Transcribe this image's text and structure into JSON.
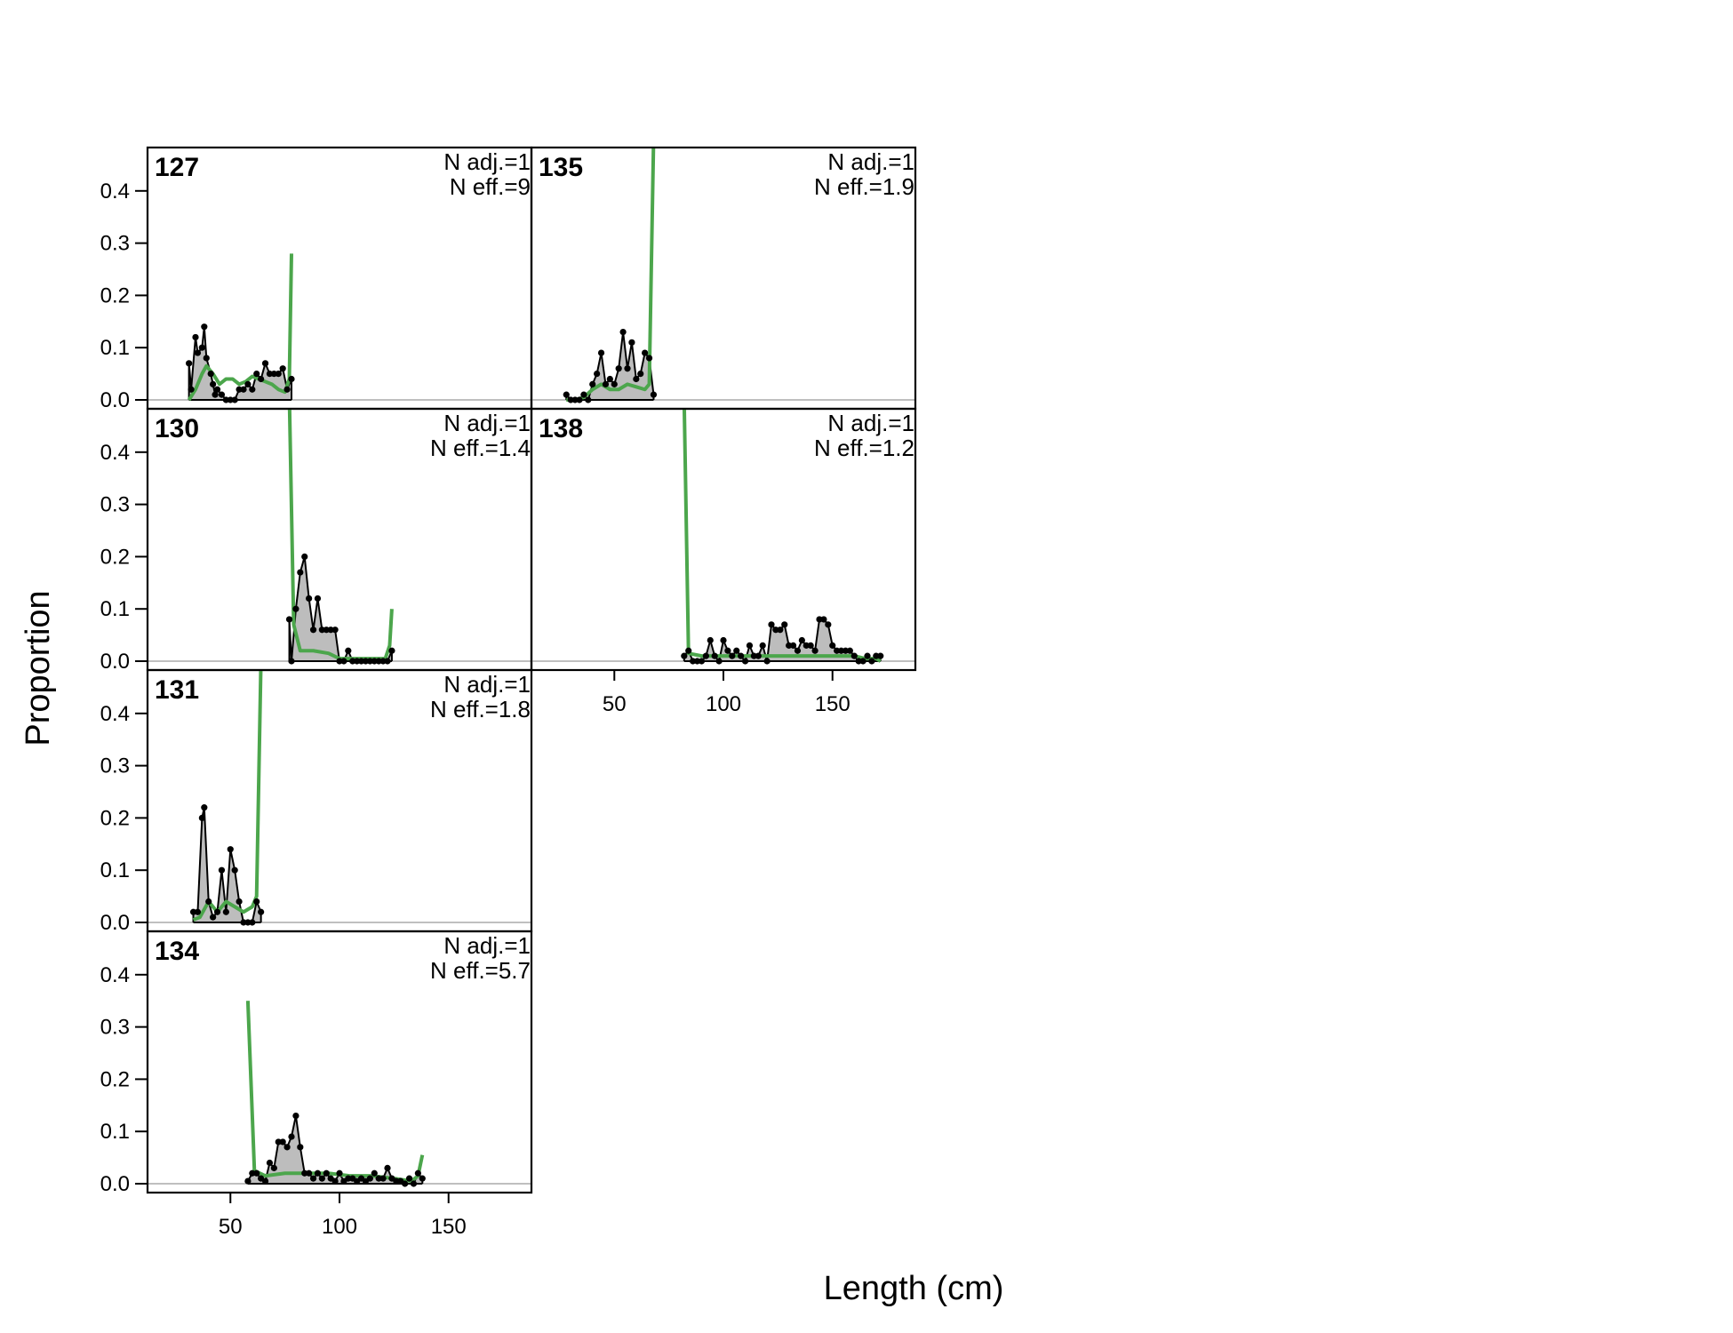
{
  "chart_data": {
    "type": "area",
    "xlabel": "Length (cm)",
    "ylabel": "Proportion",
    "xlim": [
      12,
      188
    ],
    "ylim": [
      -0.017,
      0.483
    ],
    "xticks": [
      50,
      100,
      150
    ],
    "xtick_labels": [
      "50",
      "100",
      "150"
    ],
    "yticks": [
      0.0,
      0.1,
      0.2,
      0.3,
      0.4
    ],
    "ytick_labels": [
      "0.0",
      "0.1",
      "0.2",
      "0.3",
      "0.4"
    ],
    "colors": {
      "observed_fill": "#bdbdbd",
      "observed_line": "#000000",
      "expected_line": "#4ca64c",
      "zero_line": "#bfbfbf"
    },
    "panels": [
      {
        "id": "127",
        "n_adj": "N adj.=1",
        "n_eff": "N eff.=9",
        "observed": [
          [
            31,
            0.07
          ],
          [
            32,
            0.02
          ],
          [
            34,
            0.12
          ],
          [
            35,
            0.09
          ],
          [
            37,
            0.1
          ],
          [
            38,
            0.14
          ],
          [
            39,
            0.08
          ],
          [
            41,
            0.05
          ],
          [
            42,
            0.03
          ],
          [
            43,
            0.01
          ],
          [
            44,
            0.02
          ],
          [
            46,
            0.01
          ],
          [
            48,
            0.0
          ],
          [
            50,
            0.0
          ],
          [
            52,
            0.0
          ],
          [
            54,
            0.02
          ],
          [
            56,
            0.02
          ],
          [
            58,
            0.03
          ],
          [
            60,
            0.02
          ],
          [
            62,
            0.05
          ],
          [
            64,
            0.04
          ],
          [
            66,
            0.07
          ],
          [
            68,
            0.05
          ],
          [
            70,
            0.05
          ],
          [
            72,
            0.05
          ],
          [
            74,
            0.06
          ],
          [
            76,
            0.02
          ],
          [
            78,
            0.04
          ]
        ],
        "expected": [
          [
            31,
            0.0
          ],
          [
            34,
            0.02
          ],
          [
            37,
            0.05
          ],
          [
            39,
            0.065
          ],
          [
            42,
            0.05
          ],
          [
            45,
            0.03
          ],
          [
            48,
            0.04
          ],
          [
            51,
            0.04
          ],
          [
            54,
            0.03
          ],
          [
            57,
            0.035
          ],
          [
            60,
            0.045
          ],
          [
            63,
            0.04
          ],
          [
            66,
            0.035
          ],
          [
            69,
            0.03
          ],
          [
            72,
            0.02
          ],
          [
            75,
            0.015
          ],
          [
            77,
            0.04
          ],
          [
            78,
            0.28
          ]
        ]
      },
      {
        "id": "130",
        "n_adj": "N adj.=1",
        "n_eff": "N eff.=1.4",
        "observed": [
          [
            77,
            0.08
          ],
          [
            78,
            0.0
          ],
          [
            80,
            0.1
          ],
          [
            82,
            0.17
          ],
          [
            84,
            0.2
          ],
          [
            86,
            0.12
          ],
          [
            88,
            0.06
          ],
          [
            90,
            0.12
          ],
          [
            92,
            0.06
          ],
          [
            94,
            0.06
          ],
          [
            96,
            0.06
          ],
          [
            98,
            0.06
          ],
          [
            100,
            0.0
          ],
          [
            102,
            0.0
          ],
          [
            104,
            0.02
          ],
          [
            106,
            0.0
          ],
          [
            108,
            0.0
          ],
          [
            110,
            0.0
          ],
          [
            112,
            0.0
          ],
          [
            114,
            0.0
          ],
          [
            116,
            0.0
          ],
          [
            118,
            0.0
          ],
          [
            120,
            0.0
          ],
          [
            122,
            0.0
          ],
          [
            124,
            0.02
          ]
        ],
        "expected": [
          [
            77,
            0.51
          ],
          [
            79,
            0.07
          ],
          [
            82,
            0.02
          ],
          [
            88,
            0.02
          ],
          [
            95,
            0.015
          ],
          [
            100,
            0.005
          ],
          [
            105,
            0.005
          ],
          [
            115,
            0.005
          ],
          [
            121,
            0.005
          ],
          [
            123,
            0.03
          ],
          [
            124,
            0.1
          ]
        ]
      },
      {
        "id": "131",
        "n_adj": "N adj.=1",
        "n_eff": "N eff.=1.8",
        "observed": [
          [
            33,
            0.02
          ],
          [
            35,
            0.02
          ],
          [
            37,
            0.2
          ],
          [
            38,
            0.22
          ],
          [
            40,
            0.04
          ],
          [
            42,
            0.01
          ],
          [
            44,
            0.02
          ],
          [
            46,
            0.1
          ],
          [
            48,
            0.02
          ],
          [
            50,
            0.14
          ],
          [
            52,
            0.1
          ],
          [
            54,
            0.04
          ],
          [
            56,
            0.0
          ],
          [
            58,
            0.0
          ],
          [
            60,
            0.0
          ],
          [
            62,
            0.04
          ],
          [
            64,
            0.02
          ]
        ],
        "expected": [
          [
            33,
            0.005
          ],
          [
            36,
            0.01
          ],
          [
            40,
            0.04
          ],
          [
            44,
            0.02
          ],
          [
            48,
            0.04
          ],
          [
            52,
            0.03
          ],
          [
            56,
            0.02
          ],
          [
            60,
            0.03
          ],
          [
            62,
            0.05
          ],
          [
            64,
            0.5
          ]
        ]
      },
      {
        "id": "134",
        "n_adj": "N adj.=1",
        "n_eff": "N eff.=5.7",
        "observed": [
          [
            58,
            0.005
          ],
          [
            60,
            0.02
          ],
          [
            62,
            0.02
          ],
          [
            64,
            0.01
          ],
          [
            66,
            0.005
          ],
          [
            68,
            0.04
          ],
          [
            70,
            0.03
          ],
          [
            72,
            0.08
          ],
          [
            74,
            0.08
          ],
          [
            76,
            0.07
          ],
          [
            78,
            0.09
          ],
          [
            80,
            0.13
          ],
          [
            82,
            0.07
          ],
          [
            84,
            0.02
          ],
          [
            86,
            0.02
          ],
          [
            88,
            0.01
          ],
          [
            90,
            0.02
          ],
          [
            92,
            0.01
          ],
          [
            94,
            0.02
          ],
          [
            96,
            0.01
          ],
          [
            98,
            0.005
          ],
          [
            100,
            0.02
          ],
          [
            102,
            0.005
          ],
          [
            104,
            0.01
          ],
          [
            106,
            0.01
          ],
          [
            108,
            0.005
          ],
          [
            110,
            0.01
          ],
          [
            112,
            0.005
          ],
          [
            114,
            0.01
          ],
          [
            116,
            0.02
          ],
          [
            118,
            0.01
          ],
          [
            120,
            0.01
          ],
          [
            122,
            0.03
          ],
          [
            124,
            0.01
          ],
          [
            126,
            0.005
          ],
          [
            128,
            0.005
          ],
          [
            130,
            0.0
          ],
          [
            132,
            0.01
          ],
          [
            134,
            0.0
          ],
          [
            136,
            0.02
          ],
          [
            138,
            0.01
          ]
        ],
        "expected": [
          [
            58,
            0.35
          ],
          [
            61,
            0.025
          ],
          [
            66,
            0.015
          ],
          [
            75,
            0.02
          ],
          [
            85,
            0.02
          ],
          [
            95,
            0.02
          ],
          [
            105,
            0.015
          ],
          [
            115,
            0.015
          ],
          [
            125,
            0.01
          ],
          [
            133,
            0.005
          ],
          [
            136,
            0.015
          ],
          [
            138,
            0.055
          ]
        ]
      },
      {
        "id": "135",
        "n_adj": "N adj.=1",
        "n_eff": "N eff.=1.9",
        "observed": [
          [
            28,
            0.01
          ],
          [
            30,
            0.0
          ],
          [
            32,
            0.0
          ],
          [
            34,
            0.0
          ],
          [
            36,
            0.01
          ],
          [
            38,
            0.0
          ],
          [
            40,
            0.03
          ],
          [
            42,
            0.05
          ],
          [
            44,
            0.09
          ],
          [
            46,
            0.03
          ],
          [
            48,
            0.04
          ],
          [
            50,
            0.03
          ],
          [
            52,
            0.06
          ],
          [
            54,
            0.13
          ],
          [
            56,
            0.06
          ],
          [
            58,
            0.11
          ],
          [
            60,
            0.04
          ],
          [
            62,
            0.05
          ],
          [
            64,
            0.09
          ],
          [
            66,
            0.08
          ],
          [
            68,
            0.01
          ]
        ],
        "expected": [
          [
            28,
            0.0
          ],
          [
            32,
            0.0
          ],
          [
            36,
            0.005
          ],
          [
            40,
            0.02
          ],
          [
            44,
            0.03
          ],
          [
            48,
            0.02
          ],
          [
            52,
            0.02
          ],
          [
            56,
            0.03
          ],
          [
            60,
            0.025
          ],
          [
            64,
            0.02
          ],
          [
            66,
            0.03
          ],
          [
            68,
            0.5
          ]
        ]
      },
      {
        "id": "138",
        "n_adj": "N adj.=1",
        "n_eff": "N eff.=1.2",
        "observed": [
          [
            82,
            0.01
          ],
          [
            84,
            0.02
          ],
          [
            86,
            0.0
          ],
          [
            88,
            0.0
          ],
          [
            90,
            0.0
          ],
          [
            92,
            0.01
          ],
          [
            94,
            0.04
          ],
          [
            96,
            0.01
          ],
          [
            98,
            0.0
          ],
          [
            100,
            0.04
          ],
          [
            102,
            0.02
          ],
          [
            104,
            0.01
          ],
          [
            106,
            0.02
          ],
          [
            108,
            0.01
          ],
          [
            110,
            0.0
          ],
          [
            112,
            0.03
          ],
          [
            114,
            0.01
          ],
          [
            116,
            0.01
          ],
          [
            118,
            0.03
          ],
          [
            120,
            0.0
          ],
          [
            122,
            0.07
          ],
          [
            124,
            0.06
          ],
          [
            126,
            0.06
          ],
          [
            128,
            0.07
          ],
          [
            130,
            0.03
          ],
          [
            132,
            0.03
          ],
          [
            134,
            0.02
          ],
          [
            136,
            0.04
          ],
          [
            138,
            0.03
          ],
          [
            140,
            0.03
          ],
          [
            142,
            0.02
          ],
          [
            144,
            0.08
          ],
          [
            146,
            0.08
          ],
          [
            148,
            0.07
          ],
          [
            150,
            0.03
          ],
          [
            152,
            0.02
          ],
          [
            154,
            0.02
          ],
          [
            156,
            0.02
          ],
          [
            158,
            0.02
          ],
          [
            160,
            0.01
          ],
          [
            162,
            0.0
          ],
          [
            164,
            0.0
          ],
          [
            166,
            0.01
          ],
          [
            168,
            0.0
          ],
          [
            170,
            0.01
          ],
          [
            172,
            0.01
          ]
        ],
        "expected": [
          [
            82,
            0.5
          ],
          [
            84,
            0.015
          ],
          [
            90,
            0.01
          ],
          [
            100,
            0.01
          ],
          [
            110,
            0.01
          ],
          [
            120,
            0.01
          ],
          [
            130,
            0.01
          ],
          [
            140,
            0.01
          ],
          [
            150,
            0.01
          ],
          [
            160,
            0.01
          ],
          [
            165,
            0.005
          ],
          [
            170,
            0.005
          ],
          [
            172,
            0.0
          ]
        ]
      }
    ]
  }
}
